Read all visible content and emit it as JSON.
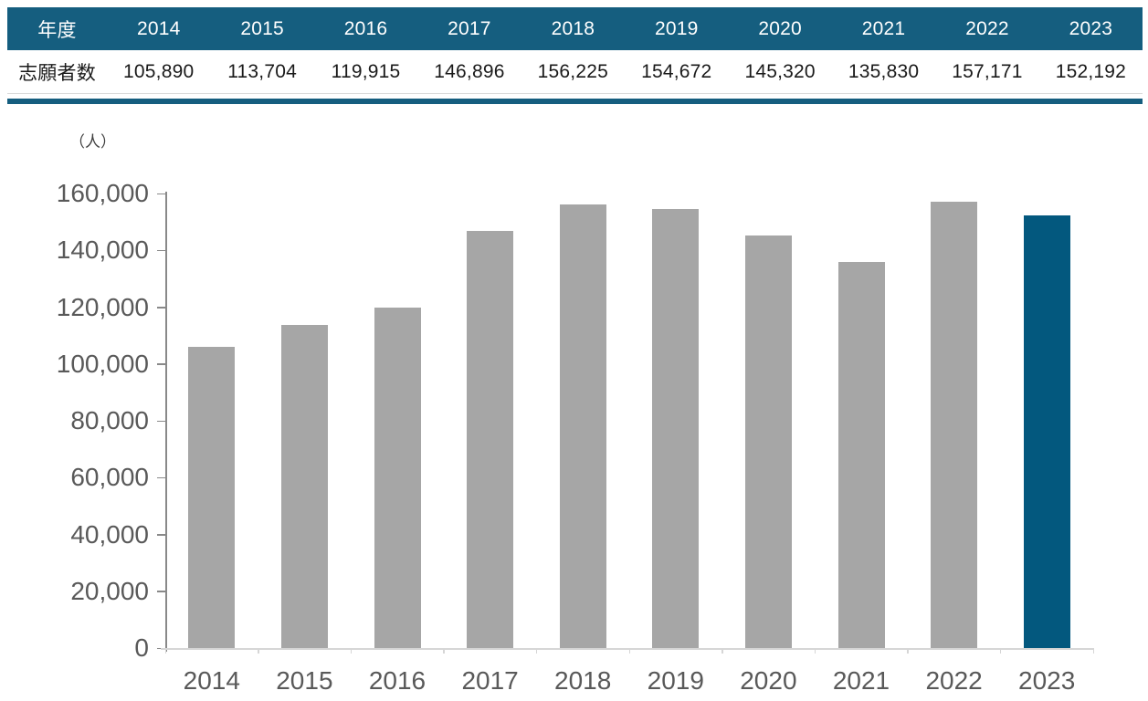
{
  "table": {
    "row_header_label": "年度",
    "value_row_label": "志願者数",
    "values_display": [
      "105,890",
      "113,704",
      "119,915",
      "146,896",
      "156,225",
      "154,672",
      "145,320",
      "135,830",
      "157,171",
      "152,192"
    ]
  },
  "chart_data": {
    "type": "bar",
    "title": "",
    "unit_label": "（人）",
    "categories": [
      "2014",
      "2015",
      "2016",
      "2017",
      "2018",
      "2019",
      "2020",
      "2021",
      "2022",
      "2023"
    ],
    "values": [
      105890,
      113704,
      119915,
      146896,
      156225,
      154672,
      145320,
      135830,
      157171,
      152192
    ],
    "ylabel": "（人）",
    "xlabel": "",
    "ylim": [
      0,
      160000
    ],
    "ytick_step": 20000,
    "grid": false,
    "legend": false,
    "bar_color": "#a6a6a6",
    "highlight_index": 9,
    "highlight_color": "#03587e"
  },
  "colors": {
    "table_header_bg": "#155e7f",
    "table_header_text": "#ffffff",
    "table_value_text": "#1a1a1a",
    "divider": "#155e7f",
    "y_axis": "#898989",
    "x_axis": "#d6d6d6",
    "axis_label_text": "#595959"
  }
}
